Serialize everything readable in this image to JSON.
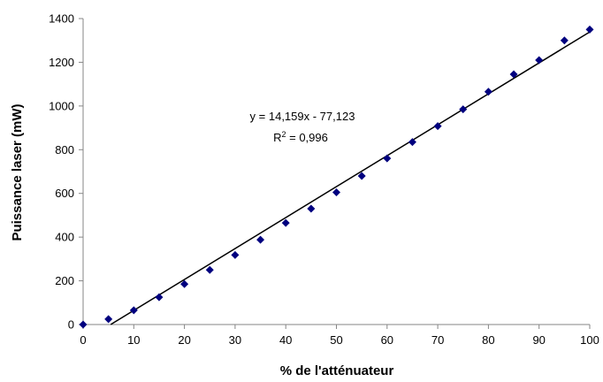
{
  "chart_data": {
    "type": "scatter",
    "title": "",
    "xlabel": "% de l'atténuateur",
    "ylabel": "Puissance laser (mW)",
    "xlim": [
      0,
      100
    ],
    "ylim": [
      0,
      1400
    ],
    "xticks": [
      0,
      10,
      20,
      30,
      40,
      50,
      60,
      70,
      80,
      90,
      100
    ],
    "yticks": [
      0,
      200,
      400,
      600,
      800,
      1000,
      1200,
      1400
    ],
    "grid": false,
    "legend": "none",
    "marker_color": "#00007f",
    "line_color": "#000000",
    "series": [
      {
        "marker": "diamond",
        "points": [
          [
            0,
            0
          ],
          [
            5,
            25
          ],
          [
            10,
            65
          ],
          [
            15,
            125
          ],
          [
            20,
            185
          ],
          [
            25,
            250
          ],
          [
            30,
            318
          ],
          [
            35,
            388
          ],
          [
            40,
            465
          ],
          [
            45,
            530
          ],
          [
            50,
            605
          ],
          [
            55,
            680
          ],
          [
            60,
            760
          ],
          [
            65,
            835
          ],
          [
            70,
            908
          ],
          [
            75,
            985
          ],
          [
            80,
            1065
          ],
          [
            85,
            1145
          ],
          [
            90,
            1210
          ],
          [
            95,
            1300
          ],
          [
            100,
            1350
          ]
        ]
      }
    ],
    "trendline": {
      "slope": 14.159,
      "intercept": -77.123,
      "x_range": [
        5.45,
        100
      ]
    },
    "annotation": {
      "equation": "y = 14,159x - 77,123",
      "r2_prefix": "R",
      "r2_sup": "2",
      "r2_suffix": " = 0,996"
    }
  }
}
